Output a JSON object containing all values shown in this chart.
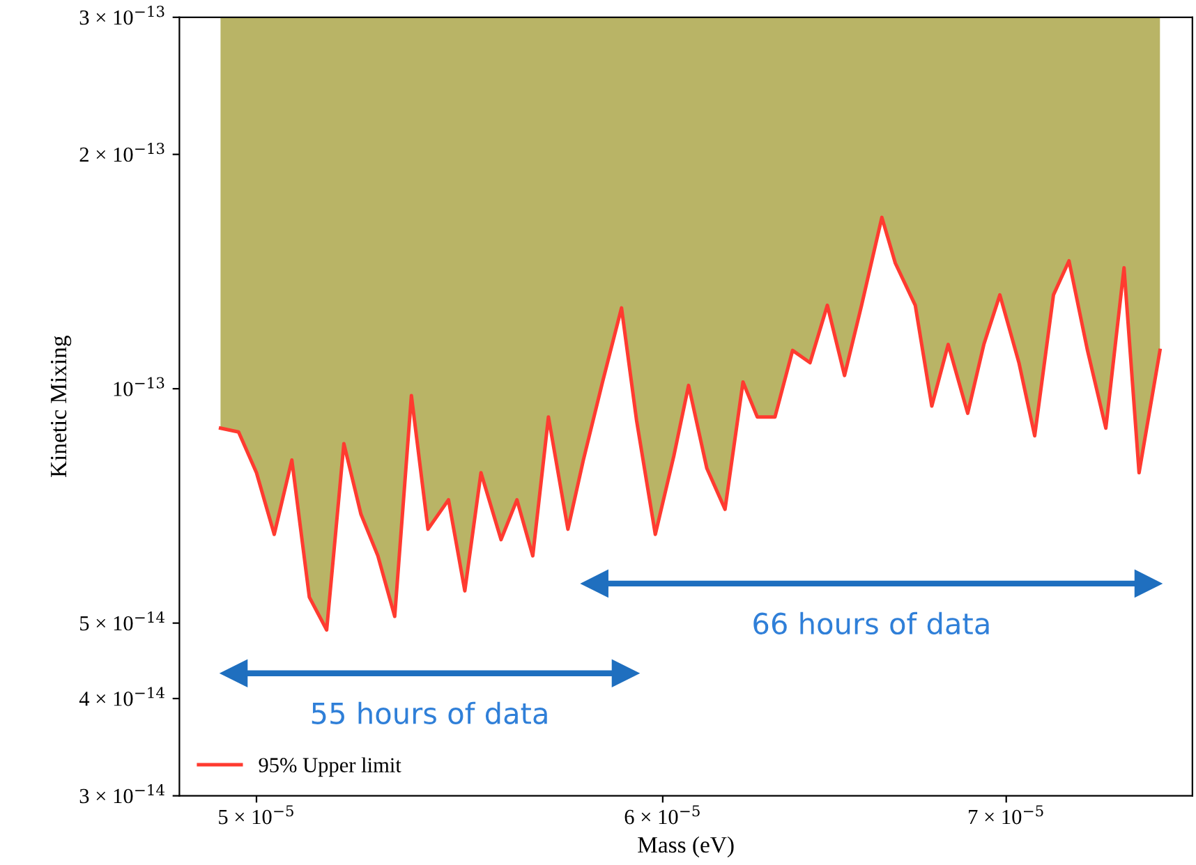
{
  "chart_data": {
    "type": "line",
    "xlabel": "Mass (eV)",
    "ylabel": "Kinetic Mixing",
    "log": "xy",
    "xlim": [
      4.83e-05,
      7.61e-05
    ],
    "xticks": [
      {
        "value": 5e-05,
        "label": "5 × 10$^{−5}$"
      },
      {
        "value": 6e-05,
        "label": "6 × 10$^{−5}$"
      },
      {
        "value": 7e-05,
        "label": "7 × 10$^{−5}$"
      }
    ],
    "ylim": [
      3e-14,
      3e-13
    ],
    "yticks": [
      {
        "value": 3e-14,
        "label": "3 × 10$^{−14}$"
      },
      {
        "value": 4e-14,
        "label": "4 × 10$^{−14}$"
      },
      {
        "value": 5e-14,
        "label": "5 × 10$^{−14}$"
      },
      {
        "value": 1e-13,
        "label": "10$^{−13}$"
      },
      {
        "value": 2e-13,
        "label": "2 × 10$^{−13}$"
      },
      {
        "value": 3e-13,
        "label": "3 × 10$^{−13}$"
      }
    ],
    "grid": false,
    "legend": "lower left",
    "series": [
      {
        "type": "area",
        "color": "#b9b466",
        "x": [
          4.92e-05,
          4.96e-05,
          5e-05,
          5.04e-05,
          5.08e-05,
          5.12e-05,
          5.16e-05,
          5.2e-05,
          5.24e-05,
          5.28e-05,
          5.32e-05,
          5.36e-05,
          5.4e-05,
          5.45e-05,
          5.49e-05,
          5.53e-05,
          5.58e-05,
          5.62e-05,
          5.66e-05,
          5.7e-05,
          5.75e-05,
          5.79e-05,
          5.84e-05,
          5.89e-05,
          5.93e-05,
          5.98e-05,
          6.03e-05,
          6.07e-05,
          6.12e-05,
          6.17e-05,
          6.22e-05,
          6.26e-05,
          6.31e-05,
          6.36e-05,
          6.41e-05,
          6.46e-05,
          6.51e-05,
          6.56e-05,
          6.62e-05,
          6.66e-05,
          6.72e-05,
          6.77e-05,
          6.82e-05,
          6.88e-05,
          6.93e-05,
          6.98e-05,
          7.04e-05,
          7.09e-05,
          7.15e-05,
          7.2e-05,
          7.26e-05,
          7.32e-05,
          7.38e-05,
          7.43e-05,
          7.5e-05
        ],
        "values": [
          3e-13,
          3e-13,
          3e-13,
          3e-13,
          3e-13,
          3e-13,
          3e-13,
          3e-13,
          3e-13,
          3e-13,
          3e-13,
          3e-13,
          3e-13,
          3e-13,
          3e-13,
          3e-13,
          3e-13,
          3e-13,
          3e-13,
          3e-13,
          3e-13,
          3e-13,
          3e-13,
          3e-13,
          3e-13,
          3e-13,
          3e-13,
          3e-13,
          3e-13,
          3e-13,
          3e-13,
          3e-13,
          3e-13,
          3e-13,
          3e-13,
          3e-13,
          3e-13,
          3e-13,
          3e-13,
          3e-13,
          3e-13,
          3e-13,
          3e-13,
          3e-13,
          3e-13,
          3e-13,
          3e-13,
          3e-13,
          3e-13,
          3e-13,
          3e-13,
          3e-13,
          3e-13,
          3e-13,
          3e-13
        ]
      },
      {
        "name": "95% Upper limit",
        "color": "#ff3b30",
        "line_style": "solid",
        "marker": "none",
        "x": [
          4.92e-05,
          4.96e-05,
          5e-05,
          5.04e-05,
          5.08e-05,
          5.12e-05,
          5.16e-05,
          5.2e-05,
          5.24e-05,
          5.28e-05,
          5.32e-05,
          5.36e-05,
          5.4e-05,
          5.45e-05,
          5.49e-05,
          5.53e-05,
          5.58e-05,
          5.62e-05,
          5.66e-05,
          5.7e-05,
          5.75e-05,
          5.79e-05,
          5.84e-05,
          5.89e-05,
          5.93e-05,
          5.98e-05,
          6.03e-05,
          6.07e-05,
          6.12e-05,
          6.17e-05,
          6.22e-05,
          6.26e-05,
          6.31e-05,
          6.36e-05,
          6.41e-05,
          6.46e-05,
          6.51e-05,
          6.56e-05,
          6.62e-05,
          6.66e-05,
          6.72e-05,
          6.77e-05,
          6.82e-05,
          6.88e-05,
          6.93e-05,
          6.98e-05,
          7.04e-05,
          7.09e-05,
          7.15e-05,
          7.2e-05,
          7.26e-05,
          7.32e-05,
          7.38e-05,
          7.43e-05,
          7.5e-05
        ],
        "values": [
          8.9e-14,
          8.8e-14,
          7.8e-14,
          6.5e-14,
          8.1e-14,
          5.4e-14,
          4.9e-14,
          8.5e-14,
          6.9e-14,
          6.1e-14,
          5.1e-14,
          9.8e-14,
          6.6e-14,
          7.2e-14,
          5.5e-14,
          7.8e-14,
          6.4e-14,
          7.2e-14,
          6.1e-14,
          9.2e-14,
          6.6e-14,
          8.1e-14,
          1.02e-13,
          1.27e-13,
          9.1e-14,
          6.5e-14,
          8.2e-14,
          1.01e-13,
          7.9e-14,
          7e-14,
          1.02e-13,
          9.2e-14,
          9.2e-14,
          1.12e-13,
          1.08e-13,
          1.28e-13,
          1.04e-13,
          1.28e-13,
          1.66e-13,
          1.45e-13,
          1.28e-13,
          9.5e-14,
          1.14e-13,
          9.3e-14,
          1.14e-13,
          1.32e-13,
          1.08e-13,
          8.7e-14,
          1.32e-13,
          1.46e-13,
          1.12e-13,
          8.9e-14,
          1.43e-13,
          7.8e-14,
          1.12e-13
        ]
      },
      {
        "type": "line",
        "color": "#1f6fbf",
        "line_style": "solid",
        "marker": "triangle",
        "x": [
          4.95e-05,
          5.9e-05
        ],
        "values": [
          4.31e-14,
          4.31e-14
        ]
      },
      {
        "type": "line",
        "color": "#1f6fbf",
        "line_style": "solid",
        "marker": "triangle",
        "x": [
          5.82e-05,
          7.46e-05
        ],
        "values": [
          5.62e-14,
          5.62e-14
        ]
      }
    ],
    "annotations": [
      "55 hours of data",
      "66 hours of data"
    ]
  }
}
